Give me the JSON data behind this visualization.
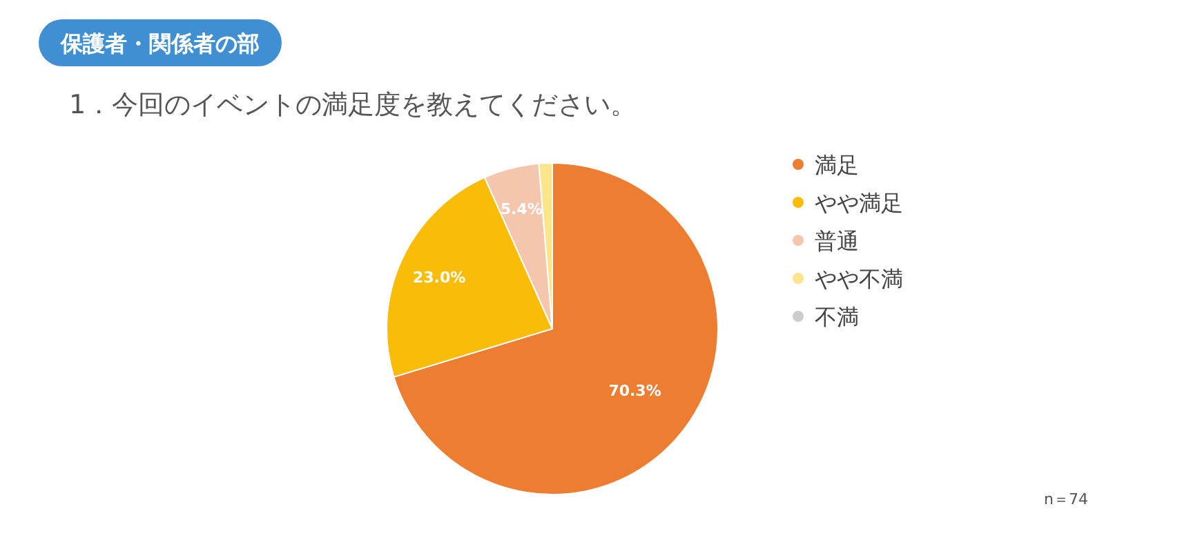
{
  "chart_data": {
    "type": "pie",
    "title": "保護者・関係者の部",
    "subtitle": "1．今回のイベントの満足度を教えてください。",
    "categories": [
      "満足",
      "やや満足",
      "普通",
      "やや不満",
      "不満"
    ],
    "values": [
      70.3,
      23.0,
      5.4,
      1.3,
      0
    ],
    "colors": [
      "#ed7d31",
      "#f9bc08",
      "#f5c6ae",
      "#fce48a",
      "#cccccc"
    ],
    "value_labels": [
      "70.3%",
      "23.0%",
      "5.4%",
      null,
      null
    ],
    "legend": "right",
    "annotations": [
      "n＝74"
    ]
  }
}
